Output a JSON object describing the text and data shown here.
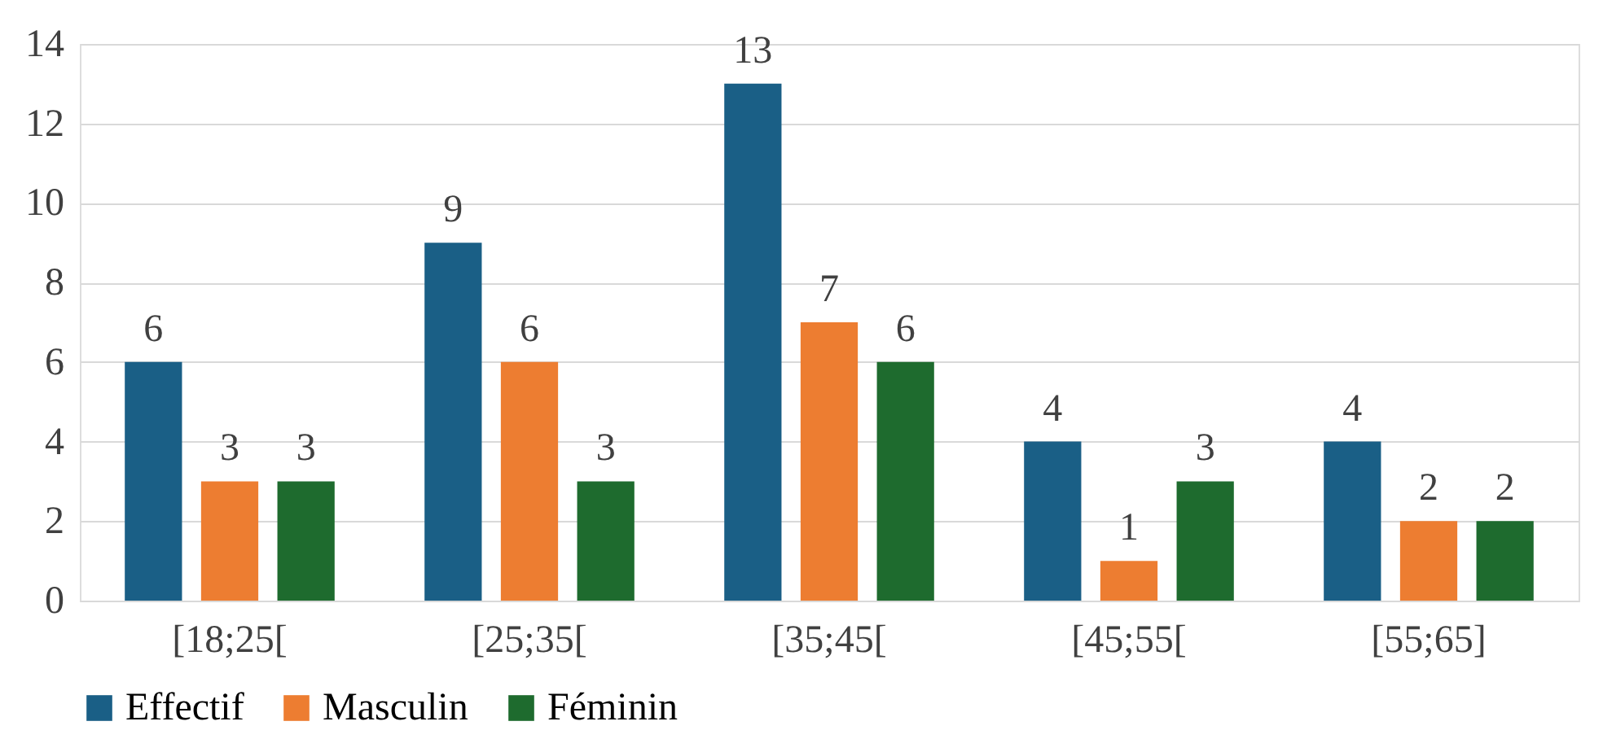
{
  "chart_data": {
    "type": "bar",
    "categories": [
      "[18;25[",
      "[25;35[",
      "[35;45[",
      "[45;55[",
      "[55;65]"
    ],
    "series": [
      {
        "name": "Effectif",
        "color": "#1a5f86",
        "values": [
          6,
          9,
          13,
          4,
          4
        ]
      },
      {
        "name": "Masculin",
        "color": "#ed7d31",
        "values": [
          3,
          6,
          7,
          1,
          2
        ]
      },
      {
        "name": "Féminin",
        "color": "#1e6b2e",
        "values": [
          3,
          3,
          6,
          3,
          2
        ]
      }
    ],
    "ylim": [
      0,
      14
    ],
    "yticks": [
      0,
      2,
      4,
      6,
      8,
      10,
      12,
      14
    ],
    "grid": "y",
    "legend": "bottom",
    "data_labels": true
  }
}
